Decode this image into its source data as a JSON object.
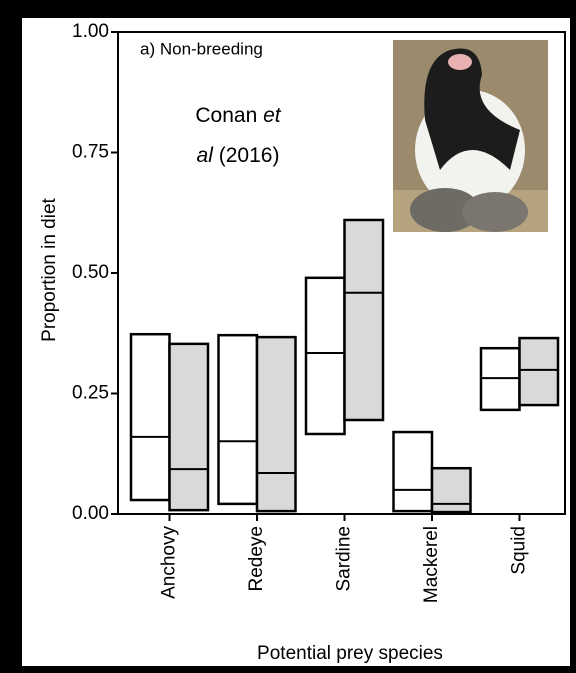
{
  "chart_data": {
    "type": "range-box",
    "annotation": "a) Non-breeding",
    "citation": [
      "Conan",
      "et",
      "al",
      "(2016)"
    ],
    "xlabel": "Potential prey species",
    "ylabel": "Proportion in diet",
    "categories": [
      "Anchovy",
      "Redeye",
      "Sardine",
      "Mackerel",
      "Squid"
    ],
    "series": [
      {
        "color": "#ffffff",
        "high": [
          0.373,
          0.371,
          0.49,
          0.17,
          0.344
        ],
        "median": [
          0.16,
          0.151,
          0.334,
          0.05,
          0.282
        ],
        "low": [
          0.029,
          0.021,
          0.166,
          0.006,
          0.216
        ]
      },
      {
        "color": "#d9d9d9",
        "high": [
          0.353,
          0.367,
          0.61,
          0.095,
          0.365
        ],
        "median": [
          0.093,
          0.085,
          0.459,
          0.021,
          0.299
        ],
        "low": [
          0.008,
          0.006,
          0.195,
          0.004,
          0.226
        ]
      }
    ],
    "ylim": [
      0,
      1
    ],
    "yticks": [
      {
        "value": 0,
        "label": "0.00"
      },
      {
        "value": 0.25,
        "label": "0.25"
      },
      {
        "value": 0.5,
        "label": "0.50"
      },
      {
        "value": 0.75,
        "label": "0.75"
      },
      {
        "value": 1,
        "label": "1.00"
      }
    ]
  }
}
